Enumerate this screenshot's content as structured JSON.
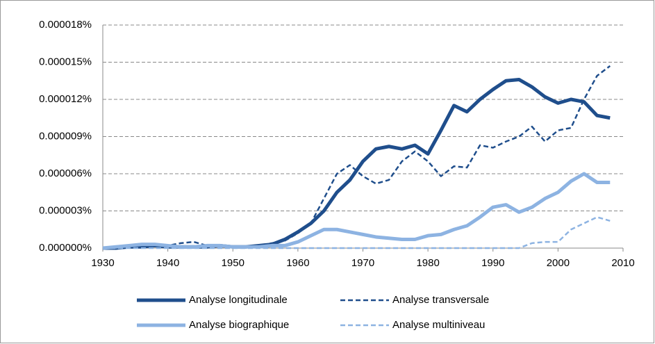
{
  "chart_data": {
    "type": "line",
    "legend": "bottom",
    "grid": true,
    "x": [
      1930,
      1932,
      1934,
      1936,
      1938,
      1940,
      1942,
      1944,
      1946,
      1948,
      1950,
      1952,
      1954,
      1956,
      1958,
      1960,
      1962,
      1964,
      1966,
      1968,
      1970,
      1972,
      1974,
      1976,
      1978,
      1980,
      1982,
      1984,
      1986,
      1988,
      1990,
      1992,
      1994,
      1996,
      1998,
      2000,
      2002,
      2004,
      2006,
      2008
    ],
    "xlim": [
      1930,
      2010
    ],
    "xticks": [
      1930,
      1940,
      1950,
      1960,
      1970,
      1980,
      1990,
      2000,
      2010
    ],
    "ylim": [
      0,
      1.8e-05
    ],
    "yticks": [
      {
        "value": 0,
        "label": "0.000000%"
      },
      {
        "value": 3e-06,
        "label": "0.000003%"
      },
      {
        "value": 6e-06,
        "label": "0.000006%"
      },
      {
        "value": 9e-06,
        "label": "0.000009%"
      },
      {
        "value": 1.2e-05,
        "label": "0.000012%"
      },
      {
        "value": 1.5e-05,
        "label": "0.000015%"
      },
      {
        "value": 1.8e-05,
        "label": "0.000018%"
      }
    ],
    "series": [
      {
        "name": "Analyse longitudinale",
        "color": "#1f4e8c",
        "dash": false,
        "width": 5,
        "values": [
          0.0,
          0.0,
          1e-07,
          1e-07,
          2e-07,
          1e-07,
          1e-07,
          1e-07,
          1e-07,
          2e-07,
          1e-07,
          1e-07,
          2e-07,
          3e-07,
          7e-07,
          1.3e-06,
          2e-06,
          3e-06,
          4.5e-06,
          5.5e-06,
          7e-06,
          8e-06,
          8.2e-06,
          8e-06,
          8.3e-06,
          7.6e-06,
          9.5e-06,
          1.15e-05,
          1.1e-05,
          1.2e-05,
          1.28e-05,
          1.35e-05,
          1.36e-05,
          1.3e-05,
          1.22e-05,
          1.17e-05,
          1.2e-05,
          1.18e-05,
          1.07e-05,
          1.05e-05
        ]
      },
      {
        "name": "Analyse transversale",
        "color": "#1f4e8c",
        "dash": true,
        "width": 2.5,
        "values": [
          0.0,
          0.0,
          1e-07,
          1e-07,
          1e-07,
          2e-07,
          4e-07,
          5e-07,
          2e-07,
          1e-07,
          1e-07,
          1e-07,
          2e-07,
          4e-07,
          6e-07,
          1.2e-06,
          2e-06,
          4e-06,
          6e-06,
          6.7e-06,
          5.8e-06,
          5.2e-06,
          5.5e-06,
          7e-06,
          7.8e-06,
          7e-06,
          5.8e-06,
          6.6e-06,
          6.5e-06,
          8.3e-06,
          8.1e-06,
          8.6e-06,
          9e-06,
          9.8e-06,
          8.6e-06,
          9.5e-06,
          9.7e-06,
          1.2e-05,
          1.39e-05,
          1.47e-05
        ]
      },
      {
        "name": "Analyse biographique",
        "color": "#8db3e2",
        "dash": false,
        "width": 5,
        "values": [
          0.0,
          1e-07,
          2e-07,
          3e-07,
          3e-07,
          2e-07,
          1e-07,
          1e-07,
          2e-07,
          2e-07,
          1e-07,
          1e-07,
          1e-07,
          2e-07,
          2e-07,
          5e-07,
          1e-06,
          1.5e-06,
          1.5e-06,
          1.3e-06,
          1.1e-06,
          9e-07,
          8e-07,
          7e-07,
          7e-07,
          1e-06,
          1.1e-06,
          1.5e-06,
          1.8e-06,
          2.5e-06,
          3.3e-06,
          3.5e-06,
          2.9e-06,
          3.3e-06,
          4e-06,
          4.5e-06,
          5.4e-06,
          6e-06,
          5.3e-06,
          5.3e-06
        ]
      },
      {
        "name": "Analyse multiniveau",
        "color": "#8db3e2",
        "dash": true,
        "width": 2.5,
        "values": [
          0,
          0,
          0,
          0,
          0,
          0,
          0,
          0,
          0,
          0,
          0,
          0,
          0,
          0,
          0,
          0,
          0,
          0,
          0,
          0,
          0,
          0,
          0,
          0,
          0,
          0,
          0,
          0,
          0,
          0,
          0,
          0,
          0,
          4e-07,
          5e-07,
          5e-07,
          1.5e-06,
          2e-06,
          2.5e-06,
          2.2e-06
        ]
      }
    ]
  }
}
